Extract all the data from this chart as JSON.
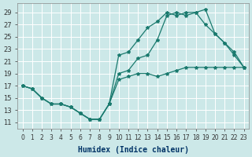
{
  "title": "",
  "xlabel": "Humidex (Indice chaleur)",
  "ylabel": "",
  "background_color": "#cce8e8",
  "grid_color": "#ffffff",
  "line_color": "#1a7a6e",
  "ylim": [
    10,
    30
  ],
  "xlim": [
    -0.5,
    23.5
  ],
  "yticks": [
    11,
    13,
    15,
    17,
    19,
    21,
    23,
    25,
    27,
    29
  ],
  "xticks": [
    0,
    1,
    2,
    3,
    4,
    5,
    6,
    7,
    8,
    9,
    10,
    11,
    12,
    13,
    14,
    15,
    16,
    17,
    18,
    19,
    20,
    21,
    22,
    23
  ],
  "line1_x": [
    0,
    1,
    2,
    3,
    4,
    5,
    6,
    7,
    8,
    9,
    10,
    11,
    12,
    13,
    14,
    15,
    16,
    17,
    18,
    19,
    20,
    21,
    22,
    23
  ],
  "line1_y": [
    17,
    16.5,
    15,
    14,
    14,
    13.5,
    12.5,
    11.5,
    11.5,
    14,
    18,
    18.5,
    19,
    19,
    18.5,
    19,
    19.5,
    20,
    20,
    20,
    20,
    20,
    20,
    20
  ],
  "line2_x": [
    0,
    1,
    2,
    3,
    4,
    5,
    6,
    7,
    8,
    9,
    10,
    11,
    12,
    13,
    14,
    15,
    16,
    17,
    18,
    19,
    20,
    21,
    22,
    23
  ],
  "line2_y": [
    17,
    16.5,
    15,
    14,
    14,
    13.5,
    12.5,
    11.5,
    11.5,
    14,
    22,
    22.5,
    24.5,
    26.5,
    27.5,
    29,
    28.5,
    29,
    29,
    29.5,
    25.5,
    24,
    22,
    20
  ],
  "line3_x": [
    0,
    1,
    2,
    3,
    4,
    5,
    6,
    7,
    8,
    9,
    10,
    11,
    12,
    13,
    14,
    15,
    16,
    17,
    18,
    19,
    20,
    21,
    22,
    23
  ],
  "line3_y": [
    17,
    16.5,
    15,
    14,
    14,
    13.5,
    12.5,
    11.5,
    11.5,
    14,
    19,
    19.5,
    21.5,
    22,
    24.5,
    28.5,
    29,
    28.5,
    29,
    27,
    25.5,
    24,
    22.5,
    20
  ]
}
